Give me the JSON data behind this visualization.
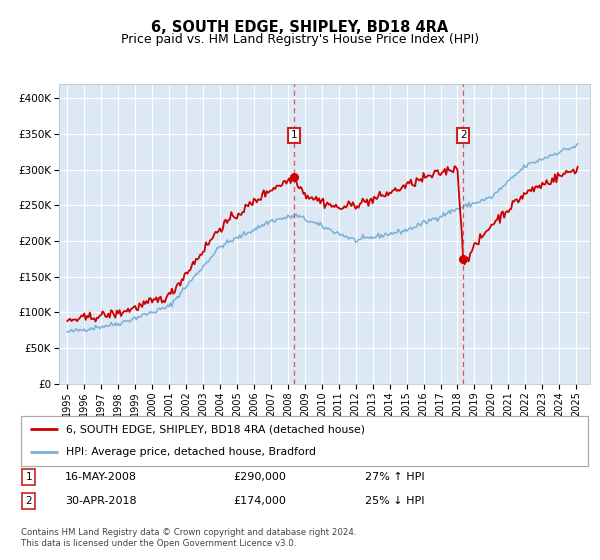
{
  "title": "6, SOUTH EDGE, SHIPLEY, BD18 4RA",
  "subtitle": "Price paid vs. HM Land Registry's House Price Index (HPI)",
  "ylabel_ticks": [
    "£0",
    "£50K",
    "£100K",
    "£150K",
    "£200K",
    "£250K",
    "£300K",
    "£350K",
    "£400K"
  ],
  "ytick_values": [
    0,
    50000,
    100000,
    150000,
    200000,
    250000,
    300000,
    350000,
    400000
  ],
  "ylim": [
    0,
    420000
  ],
  "xlim_start": 1994.5,
  "xlim_end": 2025.8,
  "background_color": "#ffffff",
  "plot_bg_color": "#dce9f5",
  "grid_color": "#ffffff",
  "red_line_color": "#cc0000",
  "blue_line_color": "#7bafd4",
  "marker1_date": 2008.37,
  "marker1_value": 290000,
  "marker2_date": 2018.33,
  "marker2_value": 174000,
  "vline_color": "#e05050",
  "annotation_box_color": "#cc2222",
  "legend_entry1": "6, SOUTH EDGE, SHIPLEY, BD18 4RA (detached house)",
  "legend_entry2": "HPI: Average price, detached house, Bradford",
  "table_row1_num": "1",
  "table_row1_date": "16-MAY-2008",
  "table_row1_price": "£290,000",
  "table_row1_hpi": "27% ↑ HPI",
  "table_row2_num": "2",
  "table_row2_date": "30-APR-2018",
  "table_row2_price": "£174,000",
  "table_row2_hpi": "25% ↓ HPI",
  "footer": "Contains HM Land Registry data © Crown copyright and database right 2024.\nThis data is licensed under the Open Government Licence v3.0.",
  "title_fontsize": 10.5,
  "subtitle_fontsize": 9.0
}
